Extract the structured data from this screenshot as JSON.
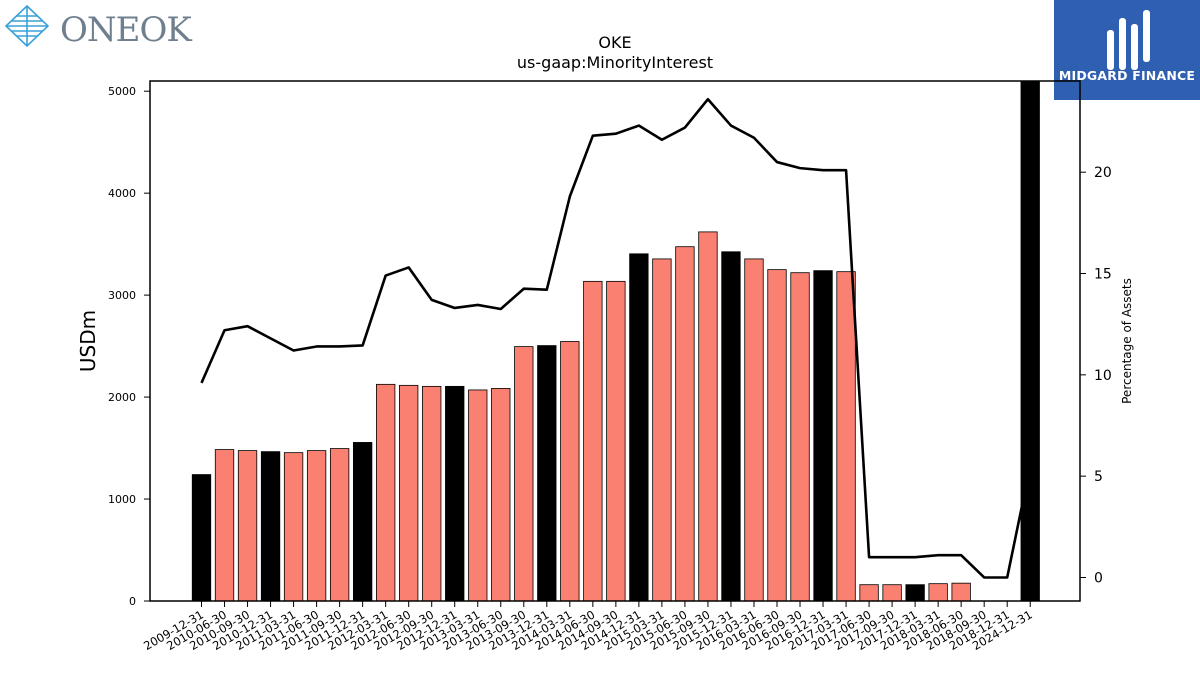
{
  "header": {
    "company_logo_text": "ONEOK",
    "sponsor_logo_text": "MIDGARD FINANCE"
  },
  "colors": {
    "bar_default": "#fa8072",
    "bar_quarter_end": "#000000",
    "line": "#000000",
    "logo_right_bg": "#2f5fb0",
    "logo_left_blue": "#3aa0d8"
  },
  "chart_data": {
    "type": "bar",
    "title": "OKE",
    "subtitle": "us-gaap:MinorityInterest",
    "ylabel": "USDm",
    "y2label": "Percentage of Assets",
    "ylim": [
      0,
      5100
    ],
    "y2lim": [
      -1.16,
      24.5
    ],
    "yticks": [
      0,
      1000,
      2000,
      3000,
      4000,
      5000
    ],
    "y2ticks": [
      0,
      5,
      10,
      15,
      20
    ],
    "categories": [
      "2009-12-31",
      "2010-06-30",
      "2010-09-30",
      "2010-12-31",
      "2011-03-31",
      "2011-06-30",
      "2011-09-30",
      "2011-12-31",
      "2012-03-31",
      "2012-06-30",
      "2012-09-30",
      "2012-12-31",
      "2013-03-31",
      "2013-06-30",
      "2013-09-30",
      "2013-12-31",
      "2014-03-31",
      "2014-06-30",
      "2014-09-30",
      "2014-12-31",
      "2015-03-31",
      "2015-06-30",
      "2015-09-30",
      "2015-12-31",
      "2016-03-31",
      "2016-06-30",
      "2016-09-30",
      "2016-12-31",
      "2017-03-31",
      "2017-06-30",
      "2017-09-30",
      "2017-12-31",
      "2018-03-31",
      "2018-06-30",
      "2018-09-30",
      "2018-12-31",
      "2024-12-31"
    ],
    "series": [
      {
        "kind": "bar",
        "values": [
          1240,
          1485,
          1475,
          1465,
          1455,
          1475,
          1495,
          1555,
          2125,
          2115,
          2105,
          2105,
          2070,
          2085,
          2495,
          2505,
          2545,
          3135,
          3135,
          3405,
          3355,
          3475,
          3620,
          3425,
          3355,
          3250,
          3220,
          3240,
          3230,
          160,
          160,
          160,
          170,
          175,
          0,
          0,
          5100
        ],
        "highlight": [
          true,
          false,
          false,
          true,
          false,
          false,
          false,
          true,
          false,
          false,
          false,
          true,
          false,
          false,
          false,
          true,
          false,
          false,
          false,
          true,
          false,
          false,
          false,
          true,
          false,
          false,
          false,
          true,
          false,
          false,
          false,
          true,
          false,
          false,
          false,
          false,
          true
        ]
      },
      {
        "kind": "line",
        "axis": "secondary",
        "values": [
          9.6,
          12.2,
          12.4,
          11.8,
          11.2,
          11.4,
          11.4,
          11.45,
          14.9,
          15.3,
          13.7,
          13.3,
          13.45,
          13.25,
          14.25,
          14.2,
          18.8,
          21.8,
          21.9,
          22.3,
          21.6,
          22.2,
          23.6,
          22.3,
          21.7,
          20.5,
          20.2,
          20.1,
          20.1,
          1.0,
          1.0,
          1.0,
          1.1,
          1.1,
          0.0,
          0.0,
          5.5
        ]
      }
    ]
  }
}
